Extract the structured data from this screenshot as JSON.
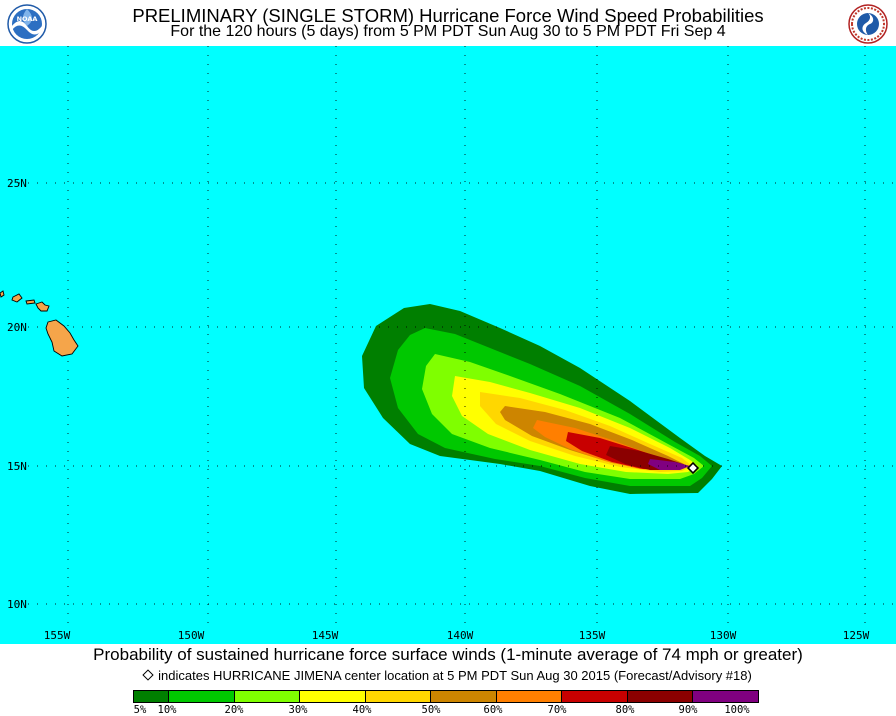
{
  "header": {
    "title": "PRELIMINARY (SINGLE STORM) Hurricane Force Wind Speed Probabilities",
    "subtitle": "For the 120 hours (5 days) from 5 PM PDT Sun Aug 30 to 5 PM PDT Fri Sep 4",
    "left_logo_text": "NOAA",
    "right_logo_text": "NATIONAL WEATHER SERVICE"
  },
  "map": {
    "ocean_color": "#00ffff",
    "land_color": "#f5a54a",
    "lon_labels": [
      "155W",
      "150W",
      "145W",
      "140W",
      "135W",
      "130W",
      "125W"
    ],
    "lat_labels": [
      "25N",
      "20N",
      "15N",
      "10N"
    ],
    "storm_center": {
      "name": "HURRICANE JIMENA",
      "lat": 15.0,
      "lon": -131.5
    }
  },
  "footer": {
    "caption": "Probability of sustained hurricane force surface winds (1-minute average of 74 mph or greater)",
    "note": "indicates HURRICANE JIMENA center location at 5 PM PDT Sun Aug 30 2015 (Forecast/Advisory #18)"
  },
  "legend": {
    "colors": [
      "#007f00",
      "#00c800",
      "#7fff00",
      "#ffff00",
      "#ffd700",
      "#cd8500",
      "#ff7f00",
      "#c80000",
      "#8b0000",
      "#800080"
    ],
    "labels": [
      "5%",
      "10%",
      "20%",
      "30%",
      "40%",
      "50%",
      "60%",
      "70%",
      "80%",
      "90%",
      "100%"
    ]
  }
}
